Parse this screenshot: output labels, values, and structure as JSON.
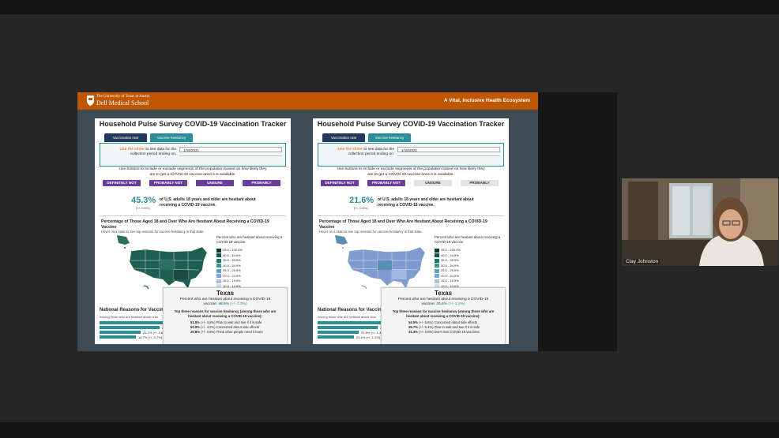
{
  "header": {
    "university": "The University of Texas at Austin",
    "school": "Dell Medical School",
    "tagline": "A Vital, Inclusive Health Ecosystem"
  },
  "participant": {
    "name": "Clay Johnston"
  },
  "panels": [
    {
      "title": "Household Pulse Survey COVID-19 Vaccination Tracker",
      "tabs": [
        "Vaccination rate",
        "Vaccine hesitancy"
      ],
      "slider_highlight": "Use the slider",
      "slider_prompt": "to see data for the collection period ending on:",
      "date": "1/18/2021",
      "instructions": "Use buttons to include or exclude segments of the population based on how likely they are to get a COVID-19 vaccine once it is available.",
      "buttons": [
        {
          "label": "DEFINITELY NOT",
          "active": true
        },
        {
          "label": "PROBABLY NOT",
          "active": true
        },
        {
          "label": "UNSURE",
          "active": true
        },
        {
          "label": "PROBABLY",
          "active": true
        }
      ],
      "stat": {
        "value": "45.3%",
        "margin": "(+/- 0.5%)",
        "description": "of U.S. adults 18 years and older are hesitant about receiving a COVID-19 vaccine."
      },
      "map": {
        "title": "Percentage of Those Aged 18 and Over Who Are Hesitant About Receiving a COVID-19 Vaccine",
        "subtitle": "Hover on a state to see top reasons for vaccine hesitancy in that state.",
        "legend_title": "Percent who are hesitant about receiving a COVID-19 vaccine",
        "legend": [
          "45.0 - 100.0%",
          "40.0 - 44.9%",
          "35.0 - 39.9%",
          "30.0 - 34.9%",
          "25.0 - 29.9%",
          "20.0 - 24.9%",
          "15.0 - 19.9%",
          "10.0 - 14.9%"
        ]
      },
      "national": {
        "title": "National Reasons for Vaccine",
        "subtitle": "Among those who are hesitant about rece",
        "bars": [
          "26.1% (+/- 1.6",
          "21.2% (+/- 0.8%) Don't",
          "18.7% (+/- 0.7%) Don't"
        ]
      },
      "tooltip": {
        "state": "Texas",
        "label": "Percent who are hesitant about receiving a COVID-19 vaccine:",
        "value": "46.5%",
        "margin": "(+/- 2.3%)",
        "reasons_title": "Top three reasons for vaccine hesitancy (among those who are hesitant about receiving a COVID-19 vaccine):",
        "reasons": [
          {
            "value": "51.8%",
            "margin": "(+/- 4.8%)",
            "text": "Plan to wait and see if it is safe"
          },
          {
            "value": "50.9%",
            "margin": "(+/- 4.2%)",
            "text": "Concerned about side effects"
          },
          {
            "value": "25.8%",
            "margin": "(+/- 3.6%)",
            "text": "Think other people need it more"
          }
        ]
      }
    },
    {
      "title": "Household Pulse Survey COVID-19 Vaccination Tracker",
      "tabs": [
        "Vaccination rate",
        "Vaccine hesitancy"
      ],
      "slider_highlight": "Use the slider",
      "slider_prompt": "to see data for the collection period ending on:",
      "date": "1/18/2021",
      "instructions": "Use buttons to include or exclude segments of the population based on how likely they are to get a COVID-19 vaccine once it is available.",
      "buttons": [
        {
          "label": "DEFINITELY NOT",
          "active": true
        },
        {
          "label": "PROBABLY NOT",
          "active": true
        },
        {
          "label": "UNSURE",
          "active": false
        },
        {
          "label": "PROBABLY",
          "active": false
        }
      ],
      "stat": {
        "value": "21.6%",
        "margin": "(+/- 0.6%)",
        "description": "of U.S. adults 18 years and older are hesitant about receiving a COVID-19 vaccine."
      },
      "map": {
        "title": "Percentage of Those Aged 18 and Over Who Are Hesitant About Receiving a COVID-19 Vaccine",
        "subtitle": "Hover on a state to see top reasons for vaccine hesitancy in that state.",
        "legend_title": "Percent who are hesitant about receiving a COVID-19 vaccine",
        "legend": [
          "45.0 - 100.0%",
          "40.0 - 44.9%",
          "35.0 - 39.9%",
          "30.0 - 34.9%",
          "25.0 - 29.9%",
          "20.0 - 24.9%",
          "15.0 - 19.9%",
          "10.0 - 14.9%"
        ]
      },
      "national": {
        "title": "National Reasons for Vaccine",
        "subtitle": "Among those who are hesitant about rece",
        "bars": [
          "32.9% (+/- 1",
          "27.8% (+/- 1.3",
          "23.4% (+/- 1.2%)"
        ]
      },
      "tooltip": {
        "state": "Texas",
        "label": "Percent who are hesitant about receiving a COVID-19 vaccine:",
        "value": "20.4%",
        "margin": "(+/- 2.2%)",
        "reasons_title": "Top three reasons for vaccine hesitancy (among those who are hesitant about receiving a COVID-19 vaccine):",
        "reasons": [
          {
            "value": "54.5%",
            "margin": "(+/- 5.6%)",
            "text": "Concerned about side effects"
          },
          {
            "value": "46.7%",
            "margin": "(+/- 6.4%)",
            "text": "Plan to wait and see if it is safe"
          },
          {
            "value": "31.4%",
            "margin": "(+/- 5.6%)",
            "text": "Don't trust COVID-19 vaccines"
          }
        ]
      }
    }
  ]
}
